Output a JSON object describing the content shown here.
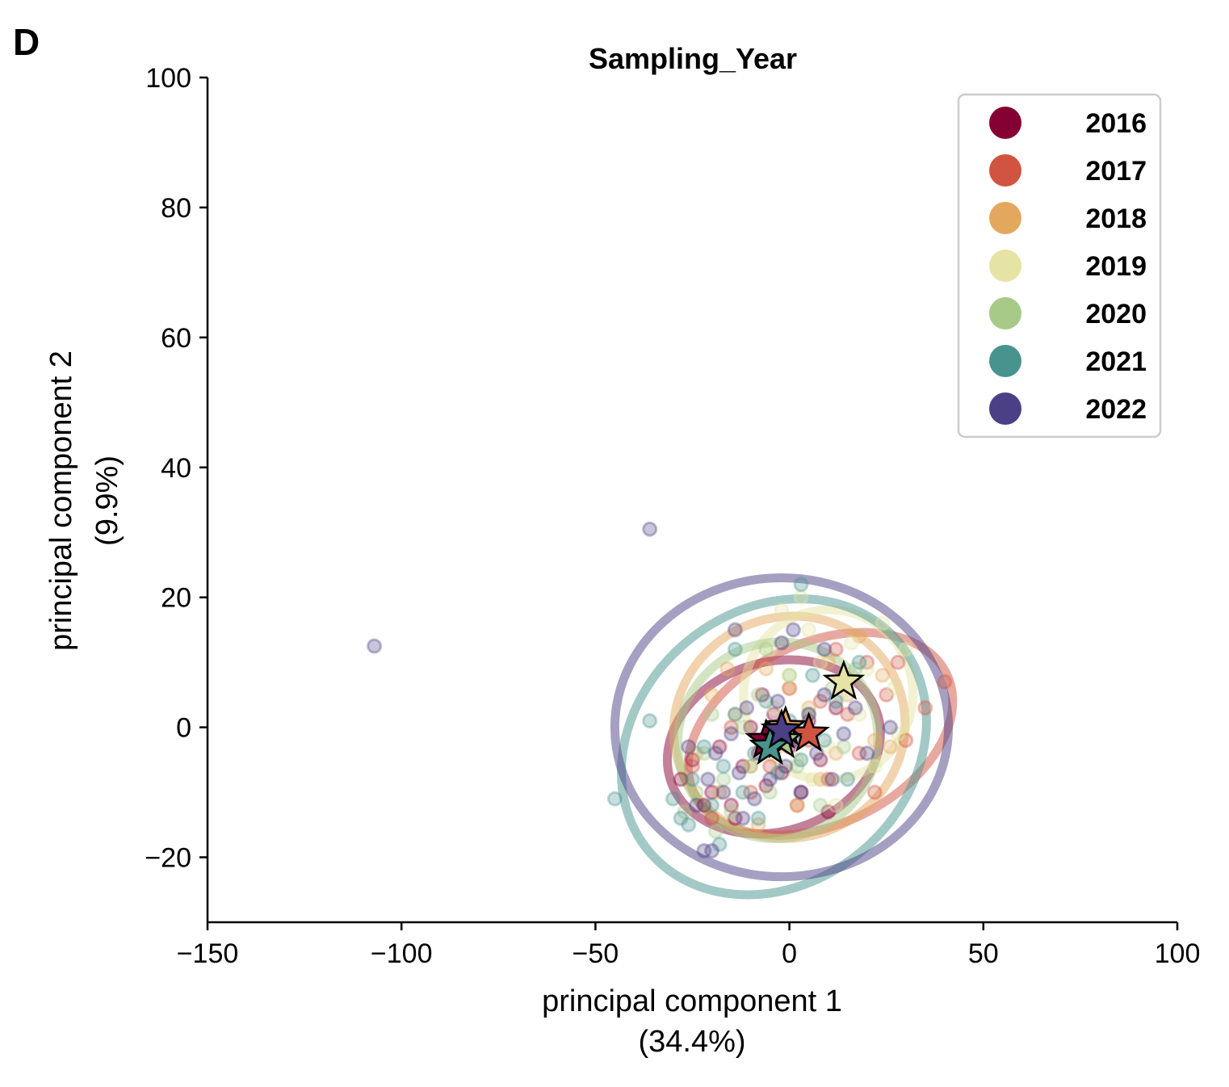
{
  "panel_label": "D",
  "chart_data": {
    "type": "scatter",
    "title": "Sampling_Year",
    "xlabel_line1": "principal component 1",
    "xlabel_line2": "(34.4%)",
    "ylabel_line1": "principal component 2",
    "ylabel_line2": "(9.9%)",
    "xlim": [
      -150,
      100
    ],
    "ylim": [
      -30,
      100
    ],
    "xticks": [
      -150,
      -100,
      -50,
      0,
      50,
      100
    ],
    "xtick_labels": [
      "−150",
      "−100",
      "−50",
      "0",
      "50",
      "100"
    ],
    "yticks": [
      -20,
      0,
      20,
      40,
      60,
      80,
      100
    ],
    "ytick_labels": [
      "−20",
      "0",
      "20",
      "40",
      "60",
      "80",
      "100"
    ],
    "grid": false,
    "legend_position": "top-right",
    "series": [
      {
        "name": "2016",
        "color": "#850133",
        "centroid": [
          -6,
          -2
        ],
        "ellipse": {
          "cx": -4,
          "cy": -3,
          "rx": 28,
          "ry": 13,
          "angle": 18
        },
        "points": [
          [
            -28,
            -8
          ],
          [
            -25,
            -5
          ],
          [
            -20,
            -10
          ],
          [
            -18,
            -3
          ],
          [
            -15,
            -12
          ],
          [
            -12,
            -6
          ],
          [
            -10,
            0
          ],
          [
            -8,
            -4
          ],
          [
            -6,
            -9
          ],
          [
            -4,
            2
          ],
          [
            -2,
            -7
          ],
          [
            0,
            -3
          ],
          [
            3,
            -10
          ],
          [
            5,
            1
          ],
          [
            8,
            -5
          ],
          [
            10,
            -13
          ],
          [
            12,
            3
          ],
          [
            -14,
            -14
          ],
          [
            -22,
            -12
          ],
          [
            -7,
            5
          ]
        ]
      },
      {
        "name": "2017",
        "color": "#d05440",
        "centroid": [
          5,
          -1
        ],
        "ellipse": {
          "cx": 8,
          "cy": -1,
          "rx": 36,
          "ry": 14,
          "angle": 25
        },
        "points": [
          [
            40,
            7
          ],
          [
            35,
            3
          ],
          [
            30,
            -2
          ],
          [
            25,
            5
          ],
          [
            20,
            10
          ],
          [
            18,
            -4
          ],
          [
            15,
            2
          ],
          [
            10,
            -8
          ],
          [
            8,
            4
          ],
          [
            5,
            -2
          ],
          [
            2,
            -12
          ],
          [
            0,
            6
          ],
          [
            -5,
            -6
          ],
          [
            -10,
            -10
          ],
          [
            -15,
            0
          ],
          [
            -20,
            -14
          ],
          [
            -25,
            -6
          ],
          [
            28,
            10
          ],
          [
            22,
            -10
          ],
          [
            12,
            12
          ]
        ]
      },
      {
        "name": "2018",
        "color": "#e3a85e",
        "centroid": [
          -1,
          0
        ],
        "ellipse": {
          "cx": 0,
          "cy": 0,
          "rx": 30,
          "ry": 17,
          "angle": 20
        },
        "points": [
          [
            24,
            8
          ],
          [
            22,
            -2
          ],
          [
            18,
            14
          ],
          [
            15,
            5
          ],
          [
            12,
            -4
          ],
          [
            10,
            10
          ],
          [
            8,
            -8
          ],
          [
            5,
            3
          ],
          [
            2,
            -12
          ],
          [
            0,
            6
          ],
          [
            -3,
            -3
          ],
          [
            -6,
            9
          ],
          [
            -10,
            -6
          ],
          [
            -14,
            2
          ],
          [
            -18,
            -10
          ],
          [
            -20,
            5
          ],
          [
            -24,
            -4
          ],
          [
            -16,
            9
          ],
          [
            -8,
            -15
          ],
          [
            26,
            -3
          ]
        ]
      },
      {
        "name": "2019",
        "color": "#e6e4a4",
        "centroid": [
          14,
          7
        ],
        "ellipse": {
          "cx": 10,
          "cy": 5,
          "rx": 22,
          "ry": 13,
          "angle": 60
        },
        "points": [
          [
            30,
            12
          ],
          [
            27,
            6
          ],
          [
            24,
            16
          ],
          [
            20,
            9
          ],
          [
            18,
            2
          ],
          [
            16,
            13
          ],
          [
            13,
            5
          ],
          [
            10,
            -3
          ],
          [
            8,
            10
          ],
          [
            5,
            15
          ],
          [
            2,
            -5
          ],
          [
            0,
            8
          ],
          [
            -2,
            18
          ],
          [
            -4,
            3
          ],
          [
            6,
            -8
          ],
          [
            12,
            -12
          ],
          [
            22,
            -6
          ],
          [
            28,
            -1
          ],
          [
            3,
            20
          ],
          [
            -5,
            12
          ]
        ]
      },
      {
        "name": "2020",
        "color": "#a7ca88",
        "centroid": [
          -2,
          -2
        ],
        "ellipse": {
          "cx": -3,
          "cy": -2,
          "rx": 26,
          "ry": 15,
          "angle": 30
        },
        "points": [
          [
            -24,
            -10
          ],
          [
            -22,
            -4
          ],
          [
            -20,
            2
          ],
          [
            -17,
            -8
          ],
          [
            -15,
            -13
          ],
          [
            -12,
            0
          ],
          [
            -10,
            -6
          ],
          [
            -8,
            5
          ],
          [
            -5,
            -10
          ],
          [
            -3,
            -2
          ],
          [
            0,
            8
          ],
          [
            2,
            -6
          ],
          [
            5,
            2
          ],
          [
            8,
            -12
          ],
          [
            11,
            6
          ],
          [
            14,
            -3
          ],
          [
            -27,
            -13
          ],
          [
            -19,
            -16
          ],
          [
            -6,
            12
          ],
          [
            17,
            9
          ]
        ]
      },
      {
        "name": "2021",
        "color": "#48938e",
        "centroid": [
          -5,
          -3
        ],
        "ellipse": {
          "cx": -4,
          "cy": -3,
          "rx": 42,
          "ry": 21,
          "angle": 40
        },
        "points": [
          [
            3,
            22
          ],
          [
            -14,
            12
          ],
          [
            -45,
            -11
          ],
          [
            -36,
            1
          ],
          [
            -30,
            -11
          ],
          [
            -28,
            -14
          ],
          [
            -25,
            -8
          ],
          [
            -22,
            -3
          ],
          [
            -20,
            -12
          ],
          [
            -17,
            -6
          ],
          [
            -14,
            2
          ],
          [
            -12,
            -10
          ],
          [
            -9,
            -4
          ],
          [
            -6,
            4
          ],
          [
            -3,
            -7
          ],
          [
            0,
            1
          ],
          [
            3,
            -5
          ],
          [
            6,
            8
          ],
          [
            9,
            -2
          ],
          [
            12,
            4
          ],
          [
            15,
            -8
          ],
          [
            -18,
            -18
          ],
          [
            -26,
            -15
          ],
          [
            18,
            10
          ],
          [
            -8,
            -14
          ]
        ]
      },
      {
        "name": "2022",
        "color": "#4b3f86",
        "centroid": [
          -2,
          -0.5
        ],
        "ellipse": {
          "cx": -2,
          "cy": 0,
          "rx": 43,
          "ry": 23,
          "angle": 0
        },
        "points": [
          [
            -107,
            12.5
          ],
          [
            -36,
            30.5
          ],
          [
            -14,
            15
          ],
          [
            -2,
            13
          ],
          [
            1,
            15
          ],
          [
            9,
            12
          ],
          [
            -22,
            -19
          ],
          [
            -20,
            -19
          ],
          [
            -24,
            -12
          ],
          [
            -21,
            -8
          ],
          [
            -19,
            -4
          ],
          [
            -17,
            -10
          ],
          [
            -15,
            -1
          ],
          [
            -13,
            -7
          ],
          [
            -11,
            3
          ],
          [
            -9,
            -11
          ],
          [
            -7,
            -3
          ],
          [
            -5,
            -8
          ],
          [
            -3,
            4
          ],
          [
            -1,
            -6
          ],
          [
            1,
            -2
          ],
          [
            3,
            -10
          ],
          [
            5,
            2
          ],
          [
            7,
            -4
          ],
          [
            9,
            5
          ],
          [
            11,
            -8
          ],
          [
            14,
            -1
          ],
          [
            17,
            3
          ],
          [
            20,
            -4
          ],
          [
            26,
            0
          ],
          [
            -26,
            -3
          ],
          [
            -12,
            -14
          ]
        ]
      }
    ]
  }
}
